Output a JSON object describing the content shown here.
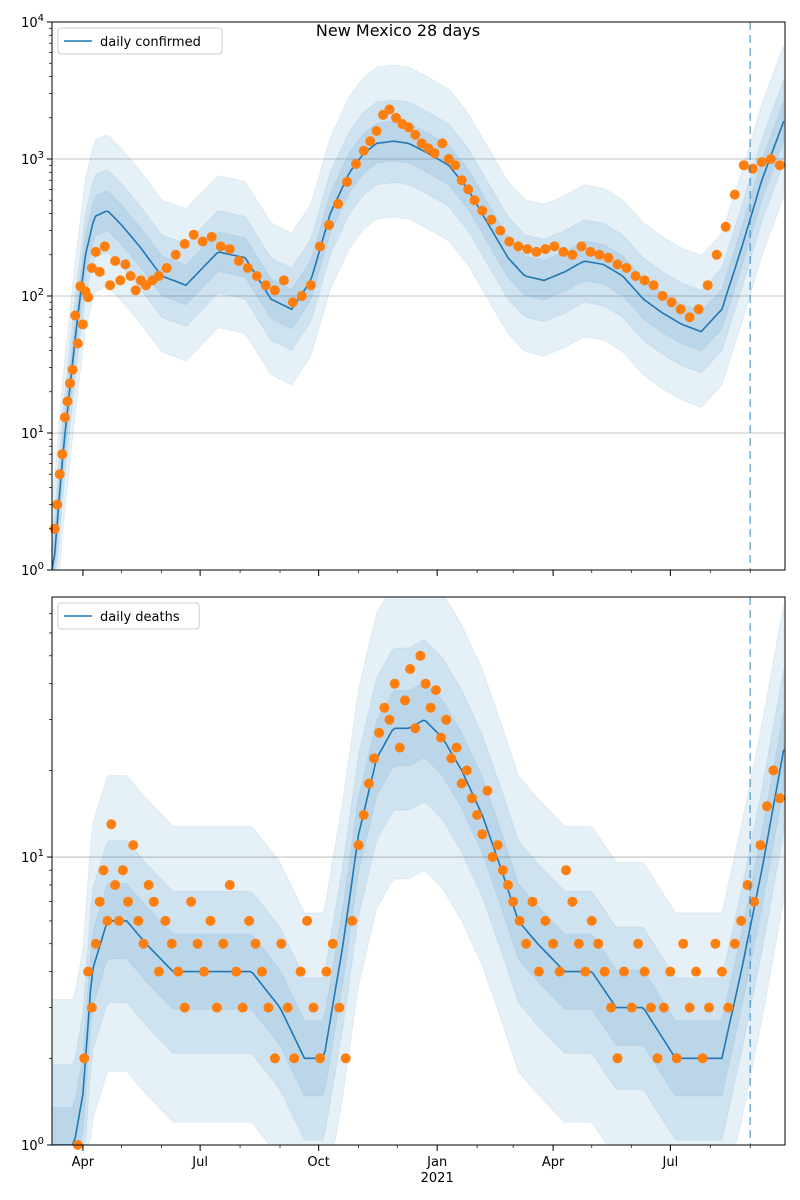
{
  "figure": {
    "title": "New Mexico 28 days"
  },
  "colors": {
    "model_line": "#1f77b4",
    "observed_points": "#ff7f0e",
    "band": "#1f77b4",
    "grid": "#b0b0b0",
    "forecast_marker": "#1f77b4"
  },
  "chart_data": [
    {
      "type": "line",
      "title": "New Mexico 28 days",
      "yscale": "log",
      "ylim": [
        1,
        10000
      ],
      "ytick_labels": [
        "10^0",
        "10^1",
        "10^2",
        "10^3",
        "10^4"
      ],
      "xlim": [
        "2020-03-08",
        "2021-09-28"
      ],
      "grid": "horizontal",
      "legend": {
        "placement": "top-left",
        "entries": [
          "daily confirmed"
        ]
      },
      "forecast_start": "2021-09-01",
      "model_keypoints": {
        "x": [
          "2020-03-09",
          "2020-03-17",
          "2020-03-27",
          "2020-04-03",
          "2020-04-10",
          "2020-04-20",
          "2020-05-01",
          "2020-05-15",
          "2020-06-01",
          "2020-06-20",
          "2020-07-15",
          "2020-08-05",
          "2020-08-25",
          "2020-09-10",
          "2020-09-25",
          "2020-10-10",
          "2020-10-25",
          "2020-11-05",
          "2020-11-15",
          "2020-11-28",
          "2020-12-10",
          "2020-12-25",
          "2021-01-10",
          "2021-01-25",
          "2021-02-10",
          "2021-02-25",
          "2021-03-10",
          "2021-03-25",
          "2021-04-10",
          "2021-04-25",
          "2021-05-10",
          "2021-05-25",
          "2021-06-10",
          "2021-06-25",
          "2021-07-10",
          "2021-07-25",
          "2021-08-10",
          "2021-08-25",
          "2021-09-10",
          "2021-09-28"
        ],
        "y": [
          1,
          8,
          60,
          200,
          380,
          420,
          330,
          230,
          140,
          120,
          210,
          190,
          95,
          80,
          130,
          400,
          800,
          1100,
          1300,
          1350,
          1300,
          1100,
          900,
          600,
          330,
          190,
          140,
          130,
          150,
          180,
          170,
          140,
          95,
          75,
          62,
          55,
          80,
          220,
          700,
          2000
        ]
      },
      "band_factors": [
        [
          3.6,
          0.28
        ],
        [
          2.0,
          0.5
        ],
        [
          1.4,
          0.72
        ]
      ],
      "points": {
        "x": [
          "2020-03-10",
          "2020-03-12",
          "2020-03-14",
          "2020-03-16",
          "2020-03-18",
          "2020-03-20",
          "2020-03-22",
          "2020-03-24",
          "2020-03-26",
          "2020-03-28",
          "2020-03-30",
          "2020-04-01",
          "2020-04-03",
          "2020-04-05",
          "2020-04-08",
          "2020-04-11",
          "2020-04-14",
          "2020-04-18",
          "2020-04-22",
          "2020-04-26",
          "2020-04-30",
          "2020-05-04",
          "2020-05-08",
          "2020-05-12",
          "2020-05-16",
          "2020-05-20",
          "2020-05-25",
          "2020-05-30",
          "2020-06-05",
          "2020-06-12",
          "2020-06-19",
          "2020-06-26",
          "2020-07-03",
          "2020-07-10",
          "2020-07-17",
          "2020-07-24",
          "2020-07-31",
          "2020-08-07",
          "2020-08-14",
          "2020-08-21",
          "2020-08-28",
          "2020-09-04",
          "2020-09-11",
          "2020-09-18",
          "2020-09-25",
          "2020-10-02",
          "2020-10-09",
          "2020-10-16",
          "2020-10-23",
          "2020-10-30",
          "2020-11-05",
          "2020-11-10",
          "2020-11-15",
          "2020-11-20",
          "2020-11-25",
          "2020-11-30",
          "2020-12-05",
          "2020-12-10",
          "2020-12-15",
          "2020-12-20",
          "2020-12-25",
          "2020-12-30",
          "2021-01-05",
          "2021-01-10",
          "2021-01-15",
          "2021-01-20",
          "2021-01-25",
          "2021-01-30",
          "2021-02-05",
          "2021-02-12",
          "2021-02-19",
          "2021-02-26",
          "2021-03-05",
          "2021-03-12",
          "2021-03-19",
          "2021-03-26",
          "2021-04-02",
          "2021-04-09",
          "2021-04-16",
          "2021-04-23",
          "2021-04-30",
          "2021-05-07",
          "2021-05-14",
          "2021-05-21",
          "2021-05-28",
          "2021-06-04",
          "2021-06-11",
          "2021-06-18",
          "2021-06-25",
          "2021-07-02",
          "2021-07-09",
          "2021-07-16",
          "2021-07-23",
          "2021-07-30",
          "2021-08-06",
          "2021-08-13",
          "2021-08-20",
          "2021-08-27",
          "2021-09-03",
          "2021-09-10",
          "2021-09-17",
          "2021-09-24"
        ],
        "y": [
          2,
          3,
          5,
          7,
          13,
          17,
          23,
          29,
          72,
          45,
          118,
          62,
          108,
          98,
          160,
          210,
          150,
          230,
          120,
          180,
          130,
          170,
          140,
          110,
          130,
          120,
          130,
          140,
          160,
          200,
          240,
          280,
          250,
          270,
          230,
          220,
          180,
          160,
          140,
          120,
          110,
          130,
          90,
          100,
          120,
          230,
          330,
          470,
          680,
          920,
          1150,
          1350,
          1600,
          2100,
          2300,
          2000,
          1800,
          1700,
          1500,
          1300,
          1200,
          1100,
          1300,
          1000,
          900,
          700,
          600,
          500,
          420,
          360,
          300,
          250,
          230,
          220,
          210,
          220,
          230,
          210,
          200,
          230,
          210,
          200,
          190,
          170,
          160,
          140,
          130,
          120,
          100,
          90,
          80,
          70,
          80,
          120,
          200,
          320,
          550,
          900,
          850,
          950,
          1000,
          900
        ]
      }
    },
    {
      "type": "line",
      "title": "",
      "yscale": "log",
      "ylim": [
        1,
        80
      ],
      "ytick_labels": [
        "10^0",
        "10^1"
      ],
      "xlim": [
        "2020-03-08",
        "2021-09-28"
      ],
      "xtick_labels": [
        "Apr",
        "Jul",
        "Oct",
        "Jan",
        "Apr",
        "Jul"
      ],
      "xtick_dates": [
        "2020-04-01",
        "2020-07-01",
        "2020-10-01",
        "2021-01-01",
        "2021-04-01",
        "2021-07-01"
      ],
      "xlabel_year": "2021",
      "grid": "horizontal",
      "legend": {
        "placement": "top-left",
        "entries": [
          "daily deaths"
        ]
      },
      "forecast_start": "2021-09-01",
      "model_keypoints": {
        "x": [
          "2020-03-25",
          "2020-04-01",
          "2020-04-08",
          "2020-04-20",
          "2020-05-05",
          "2020-05-20",
          "2020-06-10",
          "2020-07-01",
          "2020-07-20",
          "2020-08-10",
          "2020-09-01",
          "2020-09-20",
          "2020-10-05",
          "2020-10-20",
          "2020-11-01",
          "2020-11-15",
          "2020-11-28",
          "2020-12-10",
          "2020-12-22",
          "2021-01-05",
          "2021-01-20",
          "2021-02-05",
          "2021-02-20",
          "2021-03-05",
          "2021-03-20",
          "2021-04-10",
          "2021-05-01",
          "2021-05-20",
          "2021-06-10",
          "2021-07-05",
          "2021-07-25",
          "2021-08-10",
          "2021-08-25",
          "2021-09-10",
          "2021-09-28"
        ],
        "y": [
          1,
          1.5,
          4,
          6,
          6,
          5,
          4,
          4,
          4,
          4,
          3,
          2,
          2,
          5,
          12,
          22,
          28,
          28,
          30,
          26,
          20,
          14,
          9,
          6,
          5,
          4,
          4,
          3,
          3,
          2,
          2,
          2,
          4,
          9,
          25
        ]
      },
      "band_factors": [
        [
          3.2,
          0.3
        ],
        [
          1.9,
          0.52
        ],
        [
          1.35,
          0.74
        ]
      ],
      "points": {
        "x": [
          "2020-03-28",
          "2020-04-02",
          "2020-04-05",
          "2020-04-08",
          "2020-04-11",
          "2020-04-14",
          "2020-04-17",
          "2020-04-20",
          "2020-04-23",
          "2020-04-26",
          "2020-04-29",
          "2020-05-02",
          "2020-05-06",
          "2020-05-10",
          "2020-05-14",
          "2020-05-18",
          "2020-05-22",
          "2020-05-26",
          "2020-05-30",
          "2020-06-04",
          "2020-06-09",
          "2020-06-14",
          "2020-06-19",
          "2020-06-24",
          "2020-06-29",
          "2020-07-04",
          "2020-07-09",
          "2020-07-14",
          "2020-07-19",
          "2020-07-24",
          "2020-07-29",
          "2020-08-03",
          "2020-08-08",
          "2020-08-13",
          "2020-08-18",
          "2020-08-23",
          "2020-08-28",
          "2020-09-02",
          "2020-09-07",
          "2020-09-12",
          "2020-09-17",
          "2020-09-22",
          "2020-09-27",
          "2020-10-02",
          "2020-10-07",
          "2020-10-12",
          "2020-10-17",
          "2020-10-22",
          "2020-10-27",
          "2020-11-01",
          "2020-11-05",
          "2020-11-09",
          "2020-11-13",
          "2020-11-17",
          "2020-11-21",
          "2020-11-25",
          "2020-11-29",
          "2020-12-03",
          "2020-12-07",
          "2020-12-11",
          "2020-12-15",
          "2020-12-19",
          "2020-12-23",
          "2020-12-27",
          "2020-12-31",
          "2021-01-04",
          "2021-01-08",
          "2021-01-12",
          "2021-01-16",
          "2021-01-20",
          "2021-01-24",
          "2021-01-28",
          "2021-02-01",
          "2021-02-05",
          "2021-02-09",
          "2021-02-13",
          "2021-02-17",
          "2021-02-21",
          "2021-02-25",
          "2021-03-01",
          "2021-03-06",
          "2021-03-11",
          "2021-03-16",
          "2021-03-21",
          "2021-03-26",
          "2021-04-01",
          "2021-04-06",
          "2021-04-11",
          "2021-04-16",
          "2021-04-21",
          "2021-04-26",
          "2021-05-01",
          "2021-05-06",
          "2021-05-11",
          "2021-05-16",
          "2021-05-21",
          "2021-05-26",
          "2021-06-01",
          "2021-06-06",
          "2021-06-11",
          "2021-06-16",
          "2021-06-21",
          "2021-06-26",
          "2021-07-01",
          "2021-07-06",
          "2021-07-11",
          "2021-07-16",
          "2021-07-21",
          "2021-07-26",
          "2021-07-31",
          "2021-08-05",
          "2021-08-10",
          "2021-08-15",
          "2021-08-20",
          "2021-08-25",
          "2021-08-30",
          "2021-09-04",
          "2021-09-09",
          "2021-09-14",
          "2021-09-19",
          "2021-09-24"
        ],
        "y": [
          1,
          2,
          4,
          3,
          5,
          7,
          9,
          6,
          13,
          8,
          6,
          9,
          7,
          11,
          6,
          5,
          8,
          7,
          4,
          6,
          5,
          4,
          3,
          7,
          5,
          4,
          6,
          3,
          5,
          8,
          4,
          3,
          6,
          5,
          4,
          3,
          2,
          5,
          3,
          2,
          4,
          6,
          3,
          2,
          4,
          5,
          3,
          2,
          6,
          11,
          14,
          18,
          22,
          27,
          33,
          30,
          40,
          24,
          35,
          45,
          28,
          50,
          40,
          33,
          38,
          26,
          30,
          22,
          24,
          18,
          20,
          16,
          14,
          12,
          17,
          10,
          11,
          9,
          8,
          7,
          6,
          5,
          7,
          4,
          6,
          5,
          4,
          9,
          7,
          5,
          4,
          6,
          5,
          4,
          3,
          2,
          4,
          3,
          5,
          4,
          3,
          2,
          3,
          4,
          2,
          5,
          3,
          4,
          2,
          3,
          5,
          4,
          3,
          5,
          6,
          8,
          7,
          11,
          15,
          20,
          16
        ]
      }
    }
  ]
}
